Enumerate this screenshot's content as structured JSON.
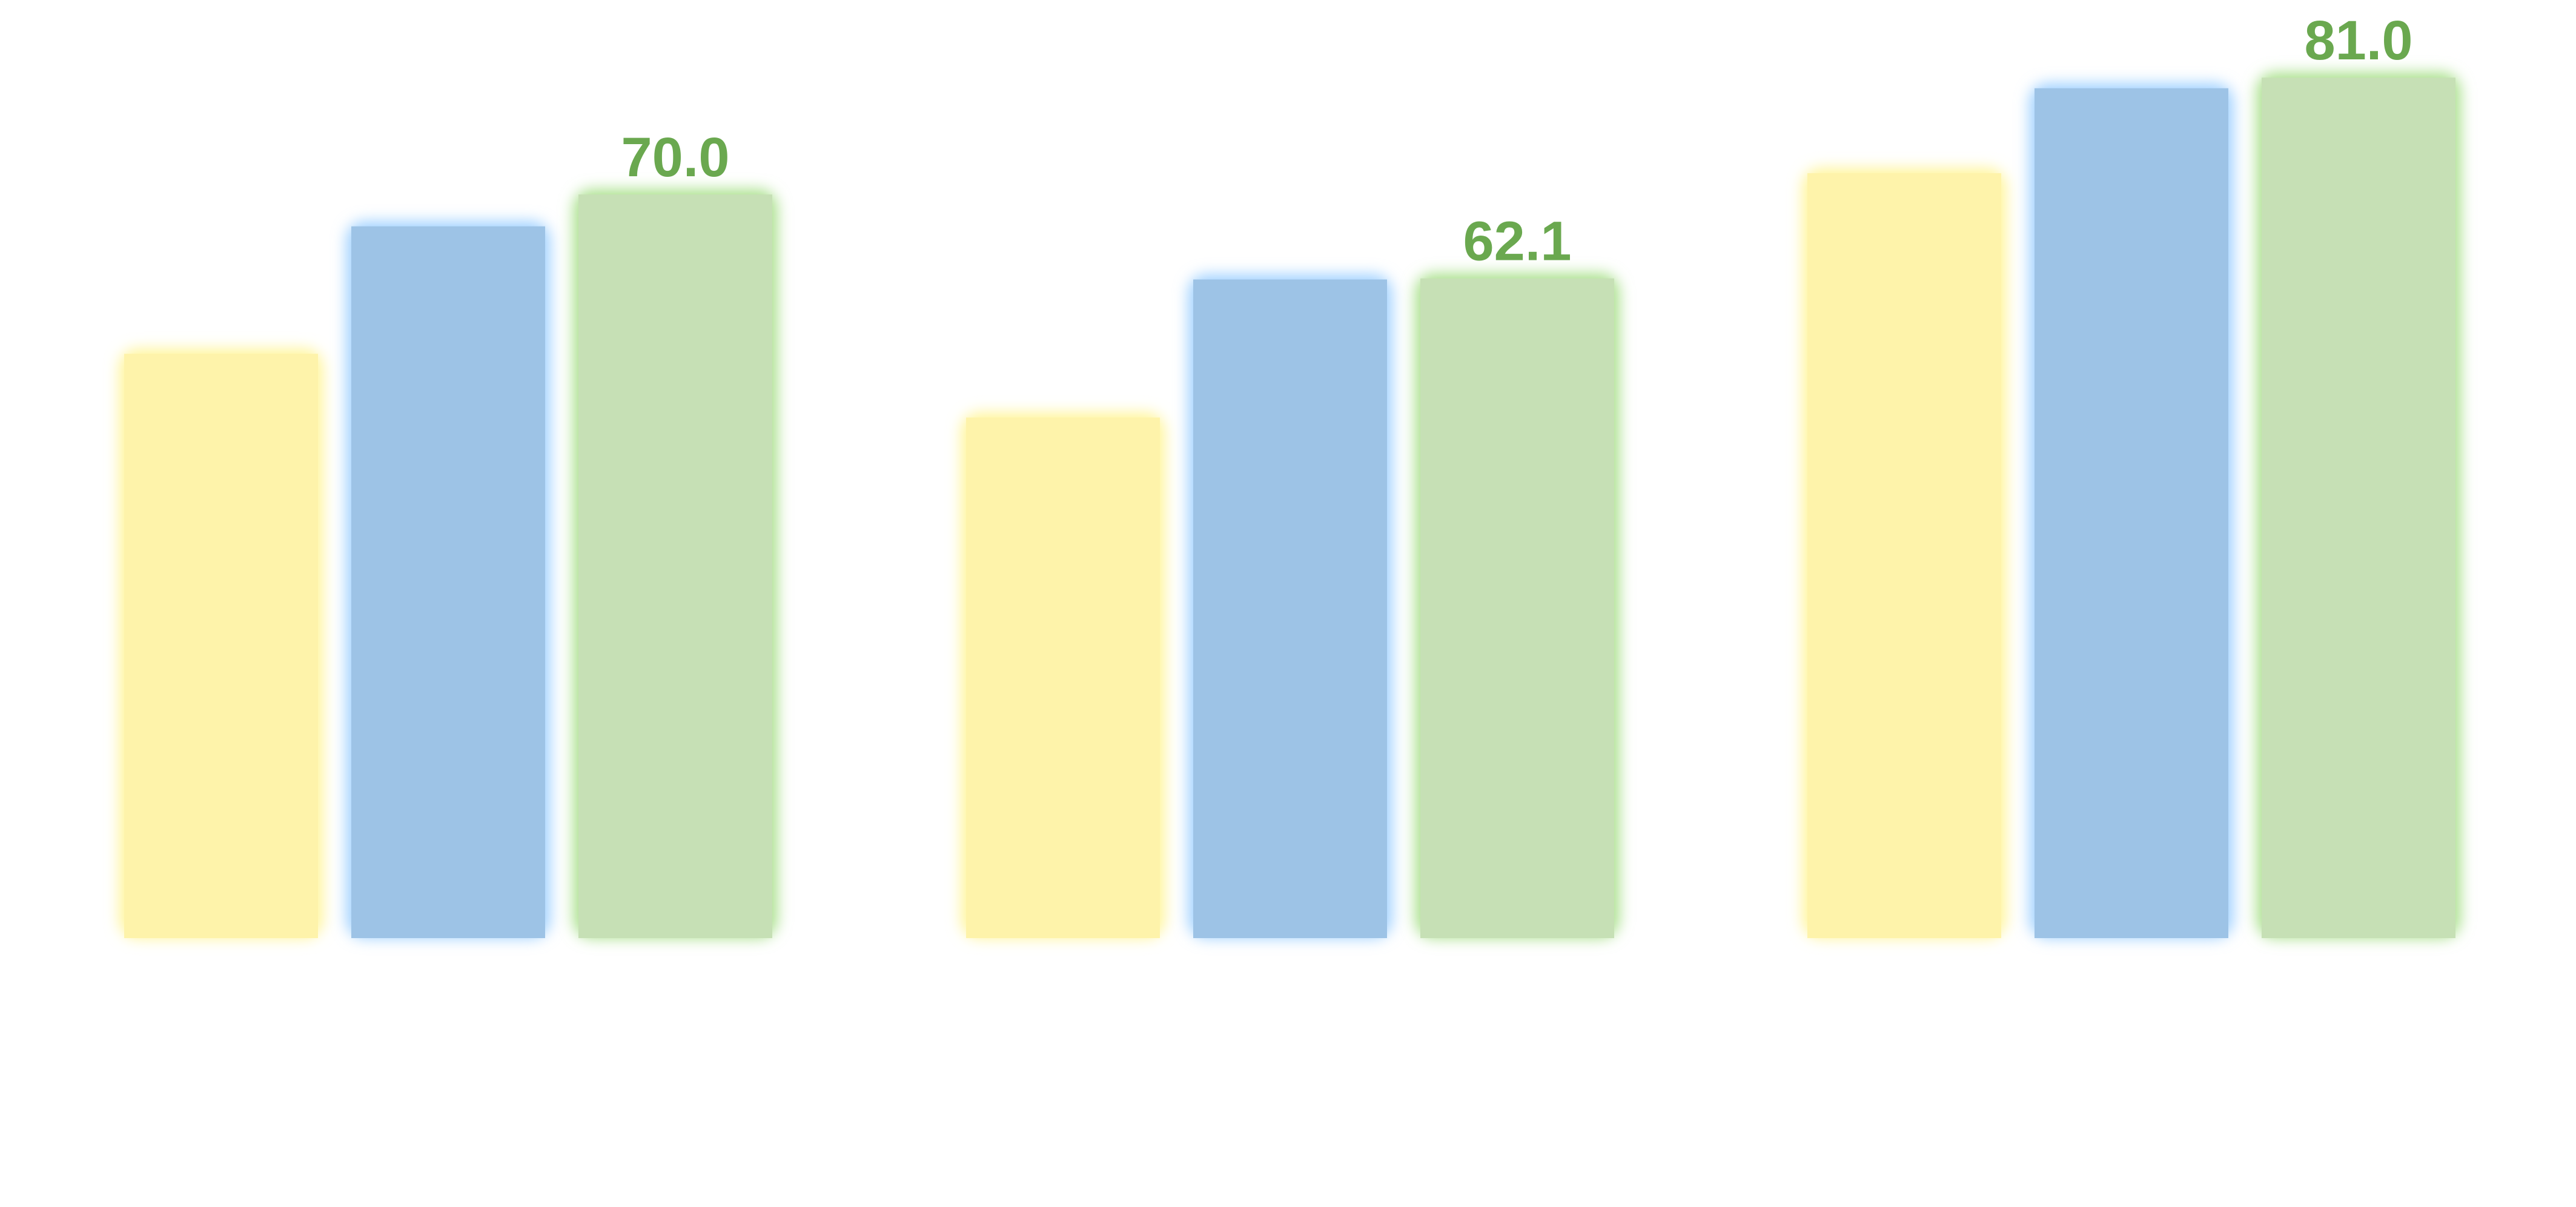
{
  "chart_data": {
    "type": "bar",
    "categories": [
      "",
      "",
      ""
    ],
    "series": [
      {
        "color": "#fef3aa",
        "glow": "#fff59a",
        "values": [
          55.0,
          49.0,
          72.0
        ]
      },
      {
        "color": "#9dc3e6",
        "glow": "#9fd0ff",
        "values": [
          67.0,
          62.0,
          80.0
        ]
      },
      {
        "color": "#c6e0b5",
        "glow": "#a8e08a",
        "label_color": "#6aa84f",
        "values": [
          70.0,
          62.1,
          81.0
        ],
        "data_labels": [
          "70.0",
          "62.1",
          "81.0"
        ]
      }
    ],
    "ylim": [
      0,
      85
    ],
    "grid": false,
    "legend": "none"
  }
}
